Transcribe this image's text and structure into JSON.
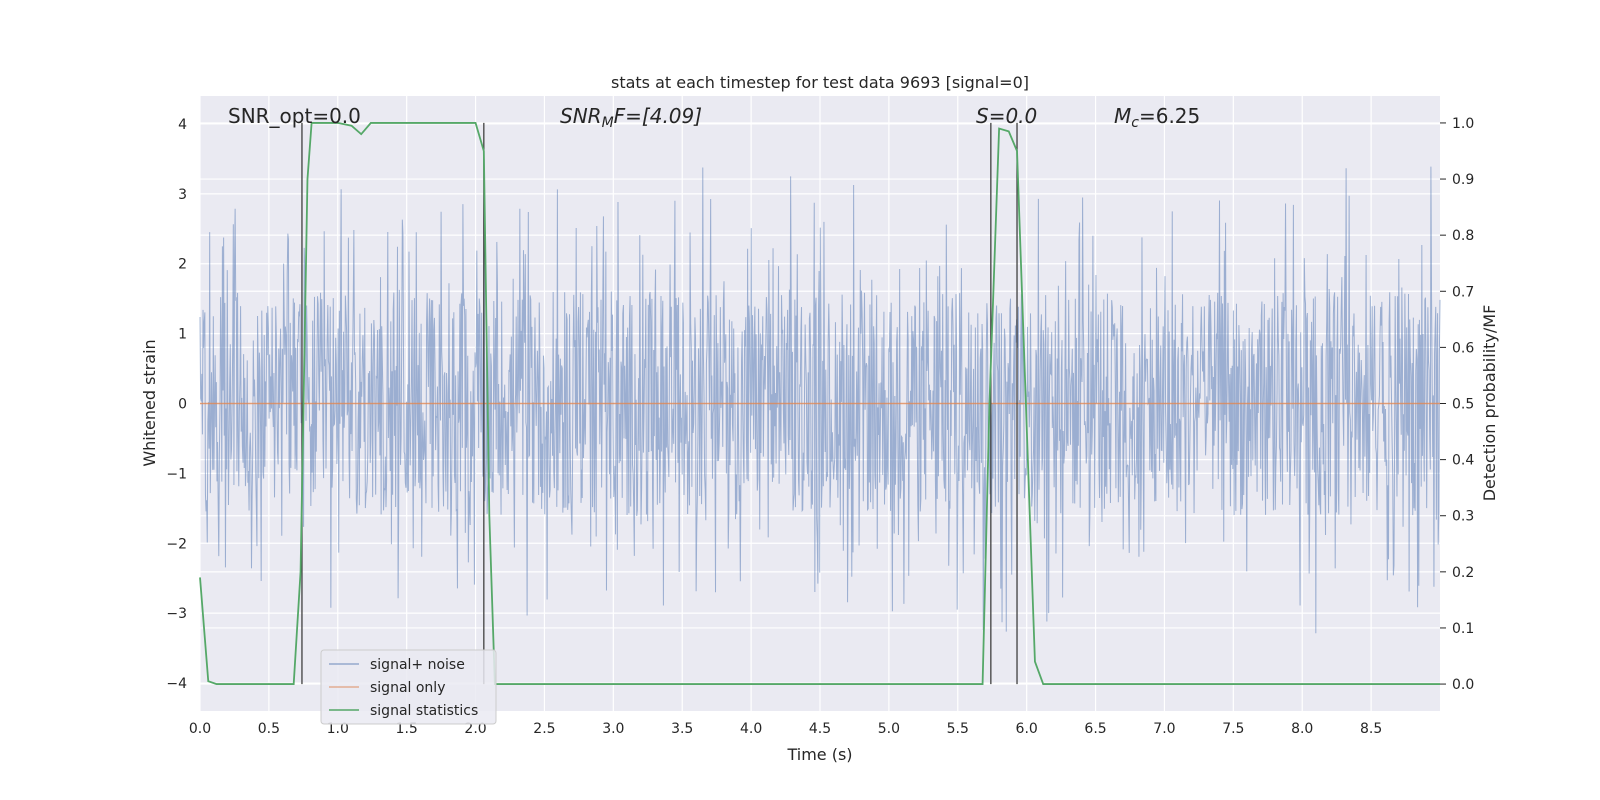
{
  "chart_data": {
    "type": "line",
    "title": "stats at each timestep for test data 9693 [signal=0]",
    "xlabel": "Time (s)",
    "ylabel": "Whitened strain",
    "ylabel_right": "Detection probability/MF",
    "xlim": [
      0,
      9.0
    ],
    "ylim": [
      -4.4,
      4.4
    ],
    "ylim_right": [
      -0.048,
      1.048
    ],
    "x_ticks": [
      0.0,
      0.5,
      1.0,
      1.5,
      2.0,
      2.5,
      3.0,
      3.5,
      4.0,
      4.5,
      5.0,
      5.5,
      6.0,
      6.5,
      7.0,
      7.5,
      8.0,
      8.5
    ],
    "x_tick_labels": [
      "0.0",
      "0.5",
      "1.0",
      "1.5",
      "2.0",
      "2.5",
      "3.0",
      "3.5",
      "4.0",
      "4.5",
      "5.0",
      "5.5",
      "6.0",
      "6.5",
      "7.0",
      "7.5",
      "8.0",
      "8.5"
    ],
    "y_ticks": [
      4,
      3,
      2,
      1,
      0,
      -1,
      -2,
      -3,
      -4
    ],
    "y_tick_labels": [
      "4",
      "3",
      "2",
      "1",
      "0",
      "−1",
      "−2",
      "−3",
      "−4"
    ],
    "y_right_ticks": [
      1.0,
      0.9,
      0.8,
      0.7,
      0.6,
      0.5,
      0.4,
      0.3,
      0.2,
      0.1,
      0.0
    ],
    "y_right_tick_labels": [
      "1.0",
      "0.9",
      "0.8",
      "0.7",
      "0.6",
      "0.5",
      "0.4",
      "0.3",
      "0.2",
      "0.1",
      "0.0"
    ],
    "grid": true,
    "legend_placement": "lower-left",
    "series": [
      {
        "name": "signal+ noise",
        "color": "#4c72b0",
        "kind": "noise",
        "amplitude_envelope": 1.6,
        "peak_range": [
          -3.8,
          3.95
        ],
        "samples": 2048
      },
      {
        "name": "signal only",
        "color": "#dd8452",
        "kind": "constant",
        "value": 0.0
      },
      {
        "name": "signal statistics",
        "color": "#55a868",
        "axis": "right",
        "x": [
          0.0,
          0.06,
          0.12,
          0.68,
          0.73,
          0.78,
          0.81,
          1.0,
          1.1,
          1.17,
          1.24,
          1.3,
          2.0,
          2.06,
          2.1,
          2.14,
          5.68,
          5.73,
          5.8,
          5.87,
          5.93,
          5.98,
          6.06,
          6.12,
          9.0
        ],
        "values": [
          0.19,
          0.005,
          0.0,
          0.0,
          0.2,
          0.9,
          1.0,
          1.0,
          0.995,
          0.98,
          1.0,
          1.0,
          1.0,
          0.95,
          0.3,
          0.0,
          0.0,
          0.5,
          0.99,
          0.985,
          0.95,
          0.6,
          0.04,
          0.0,
          0.0
        ]
      }
    ],
    "vertical_markers": [
      0.74,
      2.06,
      5.74,
      5.93
    ],
    "annotations": [
      {
        "key": "snr_opt",
        "text": "SNR_opt=0.0",
        "x": 0.19,
        "y": 4.0
      },
      {
        "key": "snr_mf",
        "text": "SNRₘF=[4.09]",
        "x": 2.6,
        "y": 4.0
      },
      {
        "key": "s",
        "text": "S=0.0",
        "x": 5.6,
        "y": 4.0
      },
      {
        "key": "mc",
        "text": "Mc=6.25",
        "x": 6.6,
        "y": 4.0
      }
    ]
  },
  "annotations": {
    "snr_opt": "SNR_opt=0.0",
    "snr_mf_base": "SNR",
    "snr_mf_sub": "M",
    "snr_mf_rest": "F=[4.09]",
    "s": "S=0.0",
    "mc_base": "M",
    "mc_sub": "c",
    "mc_rest": "=6.25"
  },
  "legend": {
    "items": [
      {
        "label": "signal+ noise",
        "color": "#4c72b0"
      },
      {
        "label": "signal only",
        "color": "#dd8452"
      },
      {
        "label": "signal statistics",
        "color": "#55a868"
      }
    ]
  },
  "colors": {
    "plot_background": "#eaeaf2",
    "grid": "#ffffff",
    "noise": "#4c72b0",
    "signal_only": "#dd8452",
    "statistics": "#55a868",
    "marker": "#404040"
  }
}
